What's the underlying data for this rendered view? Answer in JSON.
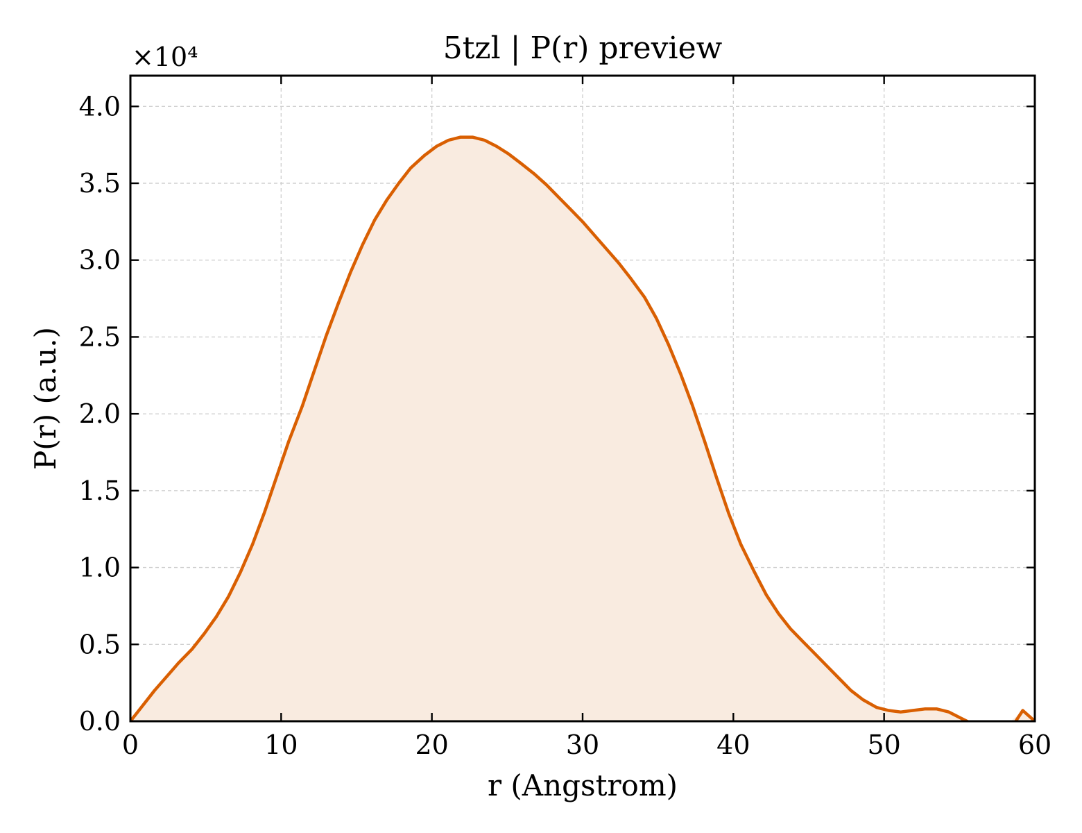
{
  "chart_data": {
    "type": "area",
    "title": "5tzl | P(r) preview",
    "xlabel": "r (Angstrom)",
    "ylabel": "P(r) (a.u.)",
    "y_multiplier_label": "×10⁴",
    "xlim": [
      0,
      60
    ],
    "ylim": [
      0,
      4.2
    ],
    "xticks": [
      0,
      10,
      20,
      30,
      40,
      50,
      60
    ],
    "xtick_labels": [
      "0",
      "10",
      "20",
      "30",
      "40",
      "50",
      "60"
    ],
    "yticks": [
      0,
      0.5,
      1.0,
      1.5,
      2.0,
      2.5,
      3.0,
      3.5,
      4.0
    ],
    "ytick_labels": [
      "0.0",
      "0.5",
      "1.0",
      "1.5",
      "2.0",
      "2.5",
      "3.0",
      "3.5",
      "4.0"
    ],
    "grid": true,
    "colors": {
      "line": "#d95f02",
      "fill": "#f9ebe0"
    },
    "series": [
      {
        "x": [
          0,
          0.8,
          1.6,
          2.4,
          3.2,
          4.1,
          4.9,
          5.7,
          6.5,
          7.3,
          8.1,
          8.9,
          9.7,
          10.5,
          11.4,
          12.2,
          13.0,
          13.8,
          14.6,
          15.4,
          16.2,
          17.0,
          17.8,
          18.6,
          19.5,
          20.3,
          21.1,
          21.9,
          22.7,
          23.5,
          24.3,
          25.1,
          25.9,
          26.8,
          27.6,
          28.4,
          29.2,
          30.0,
          30.8,
          31.6,
          32.4,
          33.2,
          34.1,
          34.9,
          35.7,
          36.5,
          37.3,
          38.1,
          38.9,
          39.7,
          40.5,
          41.4,
          42.2,
          43.0,
          43.8,
          44.6,
          45.4,
          46.2,
          47.0,
          47.8,
          48.6,
          49.5,
          50.3,
          51.1,
          51.9,
          52.7,
          53.5,
          54.3,
          55.1,
          55.9,
          56.8,
          57.6,
          58.4,
          59.2,
          60.0
        ],
        "values": [
          0.0,
          0.1,
          0.2,
          0.29,
          0.38,
          0.47,
          0.57,
          0.68,
          0.81,
          0.97,
          1.15,
          1.36,
          1.59,
          1.82,
          2.05,
          2.28,
          2.51,
          2.72,
          2.92,
          3.1,
          3.26,
          3.39,
          3.5,
          3.6,
          3.68,
          3.74,
          3.78,
          3.8,
          3.8,
          3.78,
          3.74,
          3.69,
          3.63,
          3.56,
          3.49,
          3.41,
          3.33,
          3.25,
          3.16,
          3.07,
          2.98,
          2.88,
          2.76,
          2.62,
          2.45,
          2.26,
          2.05,
          1.82,
          1.58,
          1.35,
          1.15,
          0.97,
          0.82,
          0.7,
          0.6,
          0.52,
          0.44,
          0.36,
          0.28,
          0.2,
          0.14,
          0.09,
          0.07,
          0.06,
          0.07,
          0.08,
          0.08,
          0.06,
          0.02,
          -0.02,
          -0.06,
          -0.08,
          -0.05,
          0.07,
          0.0
        ]
      }
    ]
  }
}
